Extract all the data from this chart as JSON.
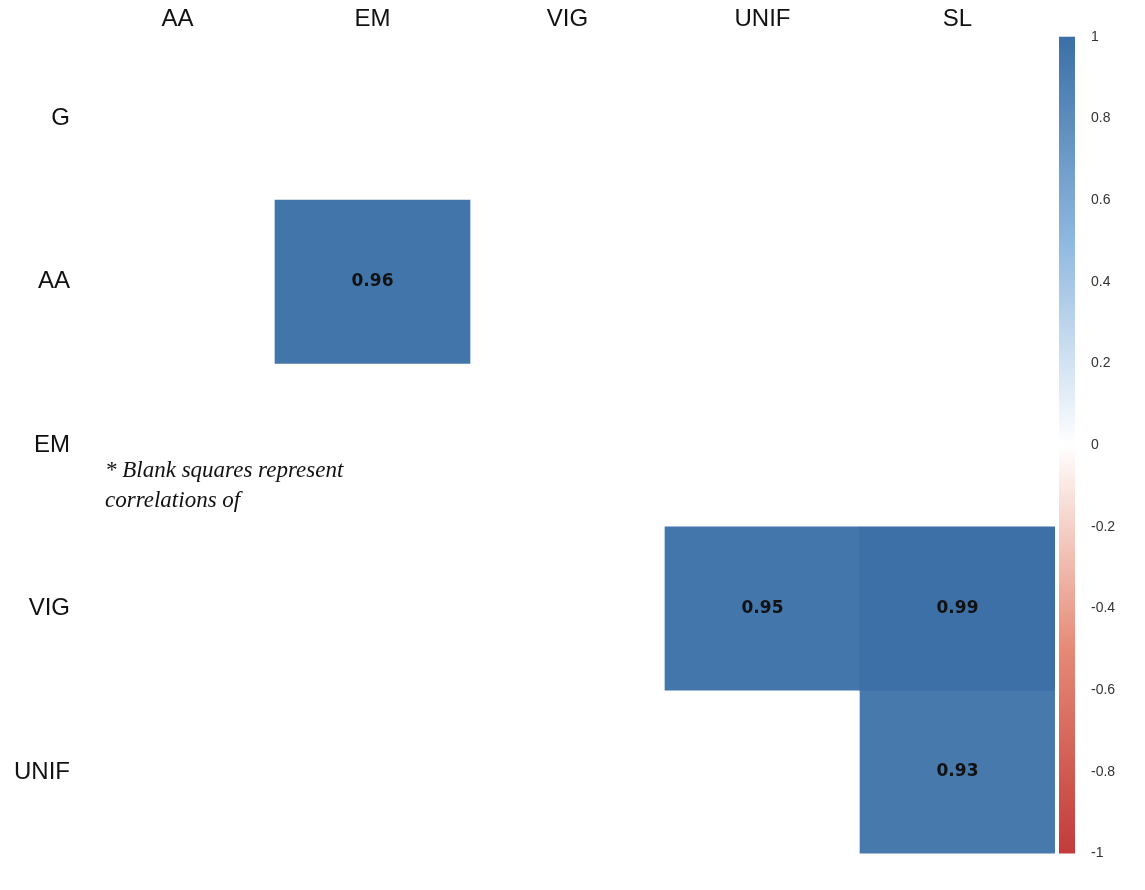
{
  "chart_data": {
    "type": "heatmap",
    "categories": [
      "AA",
      "EM",
      "VIG",
      "UNIF",
      "SL"
    ],
    "y_categories": [
      "G",
      "AA",
      "EM",
      "VIG",
      "UNIF"
    ],
    "cells": [
      [
        null,
        null,
        null,
        null,
        null
      ],
      [
        null,
        0.96,
        null,
        null,
        null
      ],
      [
        null,
        null,
        null,
        null,
        null
      ],
      [
        null,
        null,
        null,
        0.95,
        0.99
      ],
      [
        null,
        null,
        null,
        null,
        0.93
      ]
    ],
    "data_labels": true,
    "clim": [
      -1,
      1
    ],
    "cticks": [
      -1,
      -0.8,
      -0.6,
      -0.4,
      -0.2,
      0,
      0.2,
      0.4,
      0.6,
      0.8,
      1
    ],
    "annotations": [
      "* Blank squares represent correlations of"
    ],
    "grid": false,
    "legend": false
  }
}
